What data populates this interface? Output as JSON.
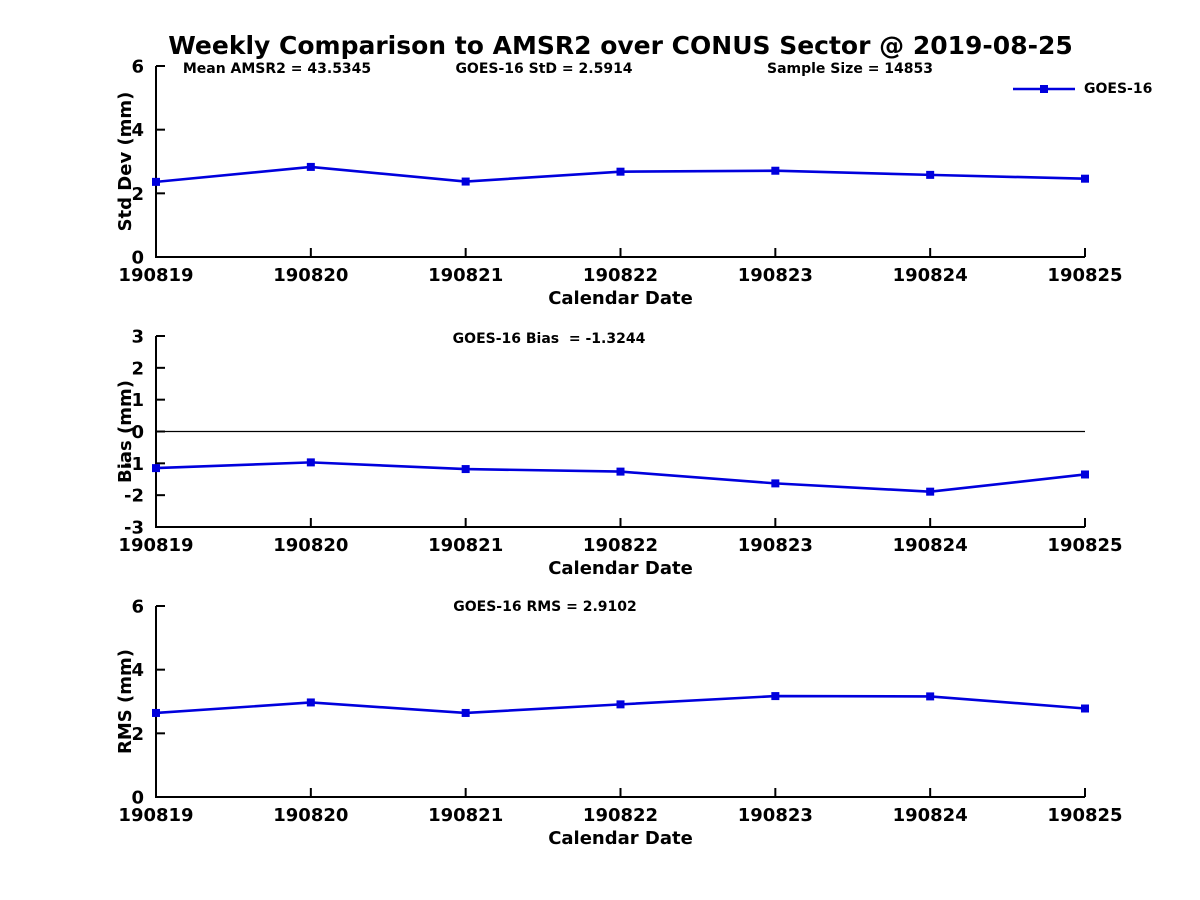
{
  "title": "Weekly Comparison to AMSR2 over CONUS Sector @ 2019-08-25",
  "annotations": {
    "mean_amsr2": "Mean AMSR2 = 43.5345",
    "goes16_std": "GOES-16 StD = 2.5914",
    "sample_size": "Sample Size = 14853",
    "goes16_bias": "GOES-16 Bias  = -1.3244",
    "goes16_rms": "GOES-16 RMS = 2.9102"
  },
  "legend": {
    "label": "GOES-16",
    "position": "top-right-outside"
  },
  "colors": {
    "line": "#0000dd",
    "axis": "#000000",
    "background": "#ffffff"
  },
  "chart_data": [
    {
      "type": "line",
      "subplot": "std-dev",
      "categories": [
        "190819",
        "190820",
        "190821",
        "190822",
        "190823",
        "190824",
        "190825"
      ],
      "series": [
        {
          "name": "GOES-16",
          "values": [
            2.36,
            2.83,
            2.37,
            2.68,
            2.71,
            2.58,
            2.46
          ]
        }
      ],
      "xlabel": "Calendar Date",
      "ylabel": "Std Dev (mm)",
      "ylim": [
        0,
        6
      ],
      "yticks": [
        0,
        2,
        4,
        6
      ],
      "grid": false,
      "marker": "square",
      "annotations": [
        "Mean AMSR2 = 43.5345",
        "GOES-16 StD = 2.5914",
        "Sample Size = 14853"
      ]
    },
    {
      "type": "line",
      "subplot": "bias",
      "categories": [
        "190819",
        "190820",
        "190821",
        "190822",
        "190823",
        "190824",
        "190825"
      ],
      "series": [
        {
          "name": "GOES-16",
          "values": [
            -1.15,
            -0.97,
            -1.18,
            -1.26,
            -1.63,
            -1.89,
            -1.35
          ]
        }
      ],
      "xlabel": "Calendar Date",
      "ylabel": "Bias (mm)",
      "ylim": [
        -3,
        3
      ],
      "yticks": [
        -3,
        -2,
        -1,
        0,
        1,
        2,
        3
      ],
      "zero_line": true,
      "grid": false,
      "marker": "square",
      "annotations": [
        "GOES-16 Bias  = -1.3244"
      ]
    },
    {
      "type": "line",
      "subplot": "rms",
      "categories": [
        "190819",
        "190820",
        "190821",
        "190822",
        "190823",
        "190824",
        "190825"
      ],
      "series": [
        {
          "name": "GOES-16",
          "values": [
            2.64,
            2.97,
            2.64,
            2.91,
            3.17,
            3.16,
            2.78
          ]
        }
      ],
      "xlabel": "Calendar Date",
      "ylabel": "RMS (mm)",
      "ylim": [
        0,
        6
      ],
      "yticks": [
        0,
        2,
        4,
        6
      ],
      "grid": false,
      "marker": "square",
      "annotations": [
        "GOES-16 RMS = 2.9102"
      ]
    }
  ]
}
